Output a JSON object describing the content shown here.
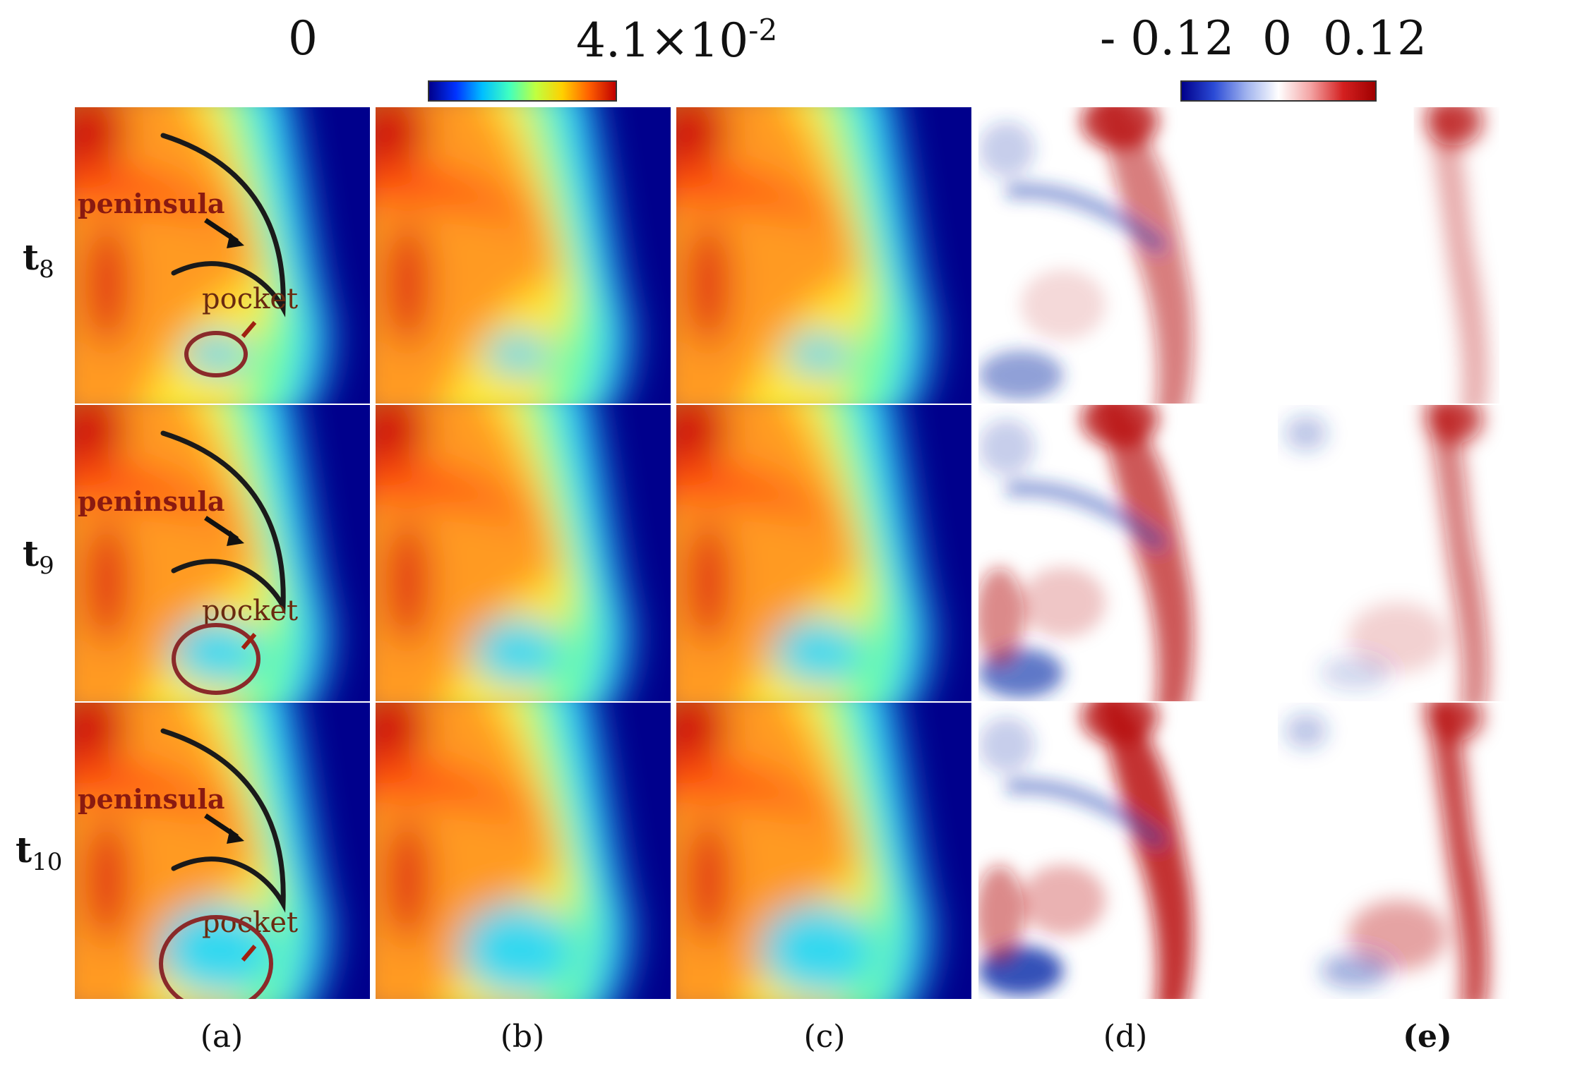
{
  "colorbars": [
    {
      "id": "concentration",
      "min_label": "0",
      "max_label_base": "4.1×10",
      "max_label_exp": "-2",
      "scale": "jet"
    },
    {
      "id": "difference",
      "labels": [
        "- 0.12",
        "0",
        "0.12"
      ],
      "scale": "blue-white-red"
    }
  ],
  "row_labels": [
    {
      "base": "t",
      "sub": "8"
    },
    {
      "base": "t",
      "sub": "9"
    },
    {
      "base": "t",
      "sub": "10"
    }
  ],
  "column_labels": [
    "(a)",
    "(b)",
    "(c)",
    "(d)",
    "(e)"
  ],
  "annotations": {
    "peninsula": "peninsula",
    "pocket": "pocket"
  },
  "colors": {
    "jet_low": "#0a0a8c",
    "jet_high": "#c81414",
    "diff_neg": "#1f3fb0",
    "diff_pos": "#b80d0d",
    "annotation_outline": "#1a1a1a",
    "pocket_outline": "#8a2a2a"
  }
}
